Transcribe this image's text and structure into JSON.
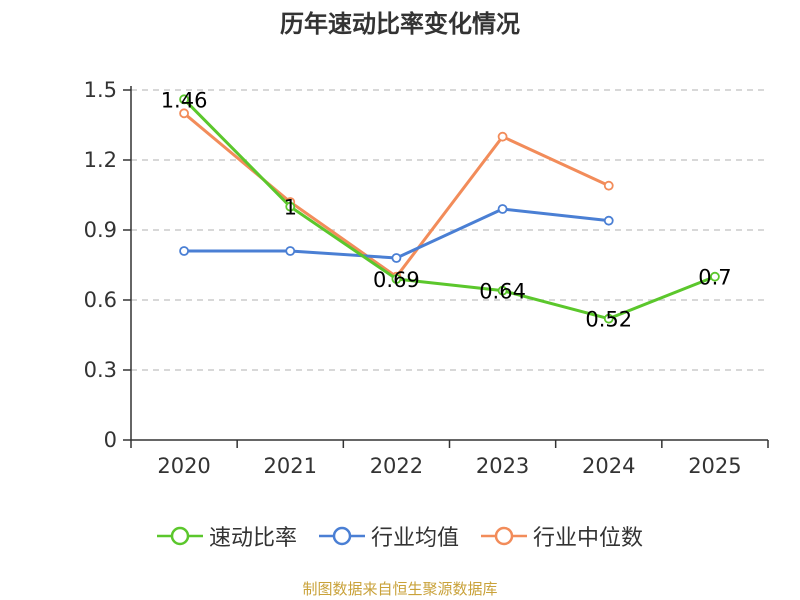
{
  "chart_data": {
    "type": "line",
    "title": "历年速动比率变化情况",
    "categories": [
      "2020",
      "2021",
      "2022",
      "2023",
      "2024",
      "2025"
    ],
    "ylim": [
      0,
      1.5
    ],
    "yticks": [
      "0",
      "0.3",
      "0.6",
      "0.9",
      "1.2",
      "1.5"
    ],
    "ytick_values": [
      0,
      0.3,
      0.6,
      0.9,
      1.2,
      1.5
    ],
    "grid": true,
    "legend_position": "bottom",
    "series": [
      {
        "name": "速动比率",
        "color": "#5bc72c",
        "values": [
          1.46,
          1.0,
          0.69,
          0.64,
          0.52,
          0.7
        ],
        "labels": [
          "1.46",
          "1",
          "0.69",
          "0.64",
          "0.52",
          "0.7"
        ]
      },
      {
        "name": "行业均值",
        "color": "#4a7fd4",
        "values": [
          0.81,
          0.81,
          0.78,
          0.99,
          0.94,
          null
        ]
      },
      {
        "name": "行业中位数",
        "color": "#f28c5a",
        "values": [
          1.4,
          1.02,
          0.7,
          1.3,
          1.09,
          null
        ]
      }
    ]
  },
  "footer": {
    "source": "制图数据来自恒生聚源数据库"
  }
}
